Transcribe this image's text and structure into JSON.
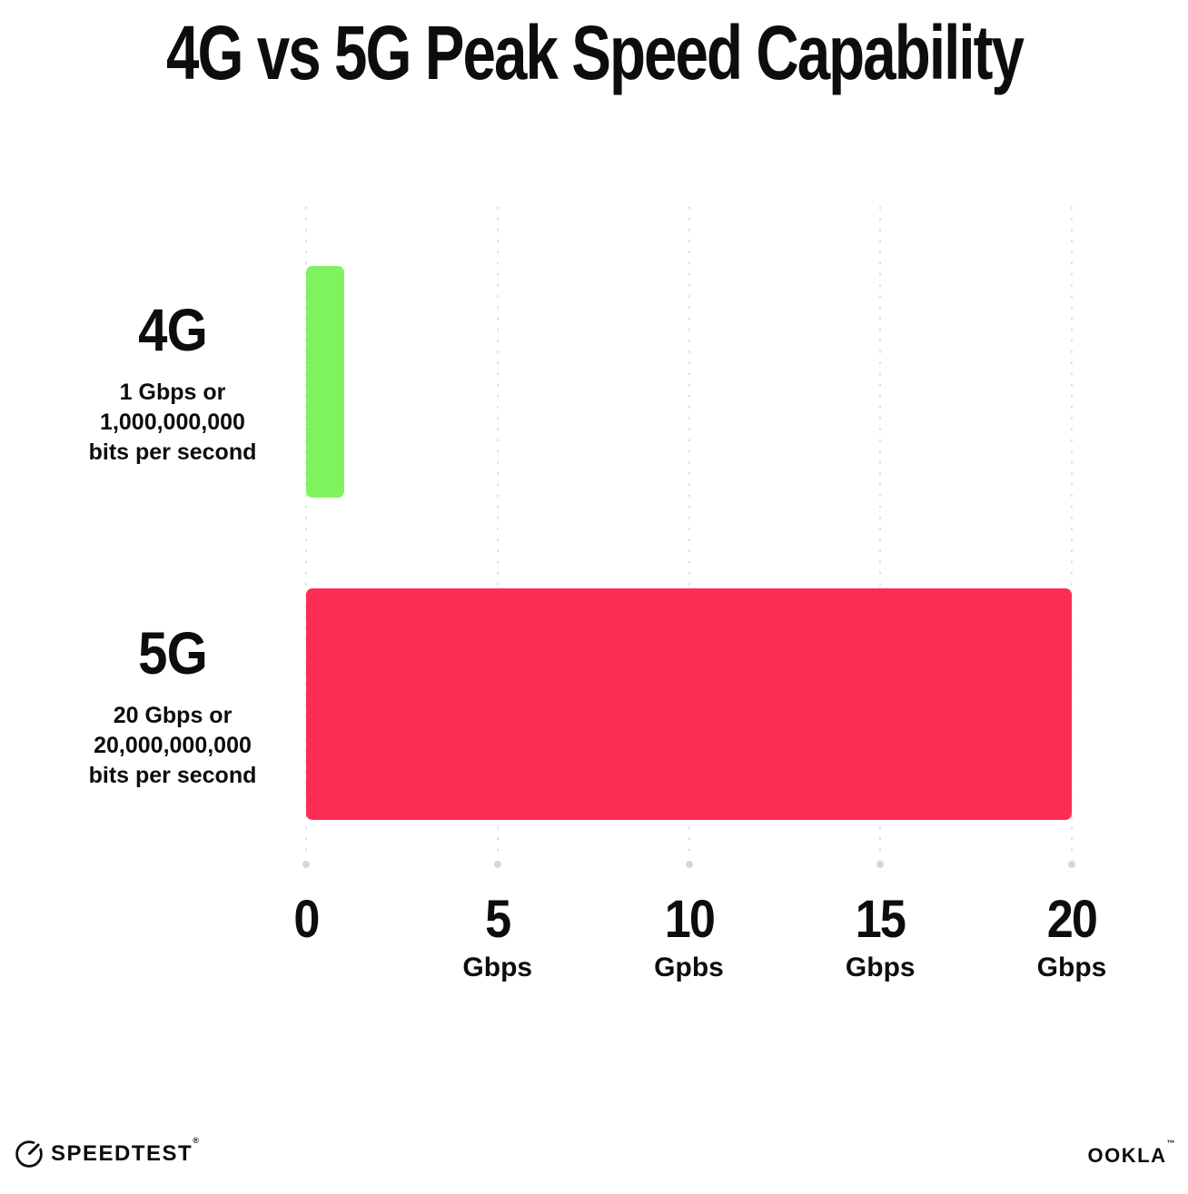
{
  "title": "4G vs 5G Peak Speed Capability",
  "chart_data": {
    "type": "bar",
    "orientation": "horizontal",
    "title": "4G vs 5G Peak Speed Capability",
    "categories": [
      "4G",
      "5G"
    ],
    "values": [
      1,
      20
    ],
    "value_unit": "Gbps",
    "xlim": [
      0,
      20
    ],
    "grid": "dotted-vertical-gridlines",
    "rows": [
      {
        "label": "4G",
        "value": 1,
        "color": "#7ef35f",
        "sub1": "1 Gbps or",
        "sub2": "1,000,000,000",
        "sub3": "bits per second"
      },
      {
        "label": "5G",
        "value": 20,
        "color": "#fc2d55",
        "sub1": "20 Gbps or",
        "sub2": "20,000,000,000",
        "sub3": "bits per second"
      }
    ],
    "ticks": [
      {
        "value": 0,
        "label": "0",
        "unit": ""
      },
      {
        "value": 5,
        "label": "5",
        "unit": "Gbps"
      },
      {
        "value": 10,
        "label": "10",
        "unit": "Gpbs"
      },
      {
        "value": 15,
        "label": "15",
        "unit": "Gbps"
      },
      {
        "value": 20,
        "label": "20",
        "unit": "Gbps"
      }
    ]
  },
  "footer": {
    "speedtest_label": "SPEEDTEST",
    "speedtest_mark": "®",
    "ookla_label": "OOKLA",
    "ookla_mark": "™"
  },
  "colors": {
    "background": "#ffffff",
    "text": "#0d0d0d",
    "bar_4g": "#7ef35f",
    "bar_5g": "#fc2d55",
    "grid_dot": "#d9dce8",
    "grid_end_dot": "#d3d7e3"
  }
}
